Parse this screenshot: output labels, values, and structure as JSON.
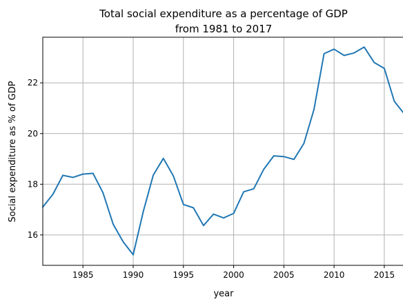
{
  "chart_data": {
    "type": "line",
    "title": "Total social expenditure as a percentage of GDP",
    "subtitle": "from 1981 to 2017",
    "xlabel": "year",
    "ylabel": "Social expenditure as % of GDP",
    "xlim": [
      1981,
      2017
    ],
    "ylim": [
      14.8,
      23.8
    ],
    "x_ticks": [
      1985,
      1990,
      1995,
      2000,
      2005,
      2010,
      2015
    ],
    "y_ticks": [
      16,
      18,
      20,
      22
    ],
    "grid": true,
    "line_color": "#1f77b4",
    "x": [
      1981,
      1982,
      1983,
      1984,
      1985,
      1986,
      1987,
      1988,
      1989,
      1990,
      1991,
      1992,
      1993,
      1994,
      1995,
      1996,
      1997,
      1998,
      1999,
      2000,
      2001,
      2002,
      2003,
      2004,
      2005,
      2006,
      2007,
      2008,
      2009,
      2010,
      2011,
      2012,
      2013,
      2014,
      2015,
      2016,
      2017
    ],
    "values": [
      17.1,
      17.6,
      18.35,
      18.27,
      18.4,
      18.43,
      17.66,
      16.43,
      15.73,
      15.22,
      16.92,
      18.36,
      19.02,
      18.33,
      17.2,
      17.07,
      16.37,
      16.82,
      16.67,
      16.85,
      17.7,
      17.82,
      18.59,
      19.12,
      19.09,
      18.98,
      19.61,
      20.95,
      23.15,
      23.33,
      23.08,
      23.18,
      23.41,
      22.8,
      22.57,
      21.27,
      20.77
    ]
  }
}
